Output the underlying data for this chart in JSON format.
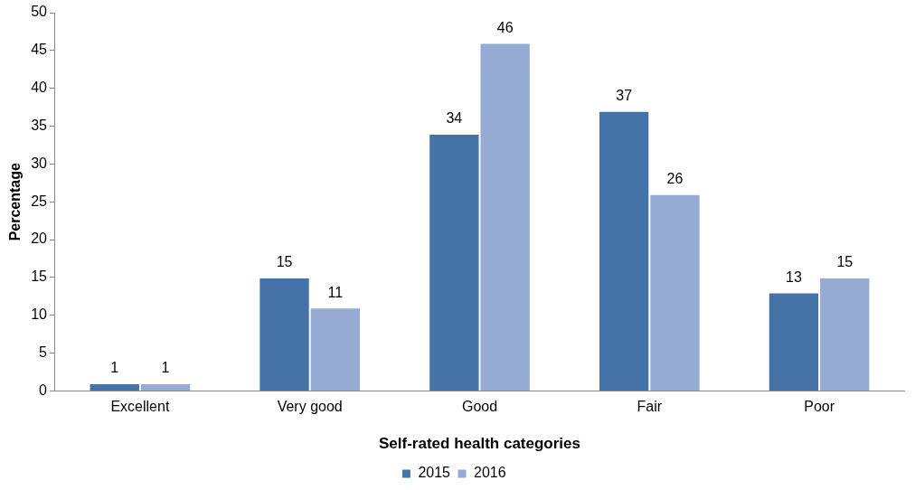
{
  "chart_data": {
    "type": "bar",
    "xlabel": "Self-rated health categories",
    "ylabel": "Percentage",
    "categories": [
      "Excellent",
      "Very good",
      "Good",
      "Fair",
      "Poor"
    ],
    "series": [
      {
        "name": "2015",
        "color": "#4573a7",
        "values": [
          1,
          15,
          34,
          37,
          13
        ]
      },
      {
        "name": "2016",
        "color": "#95abd3",
        "values": [
          1,
          11,
          46,
          26,
          15
        ]
      }
    ],
    "ylim": [
      0,
      50
    ],
    "yticks": [
      0,
      5,
      10,
      15,
      20,
      25,
      30,
      35,
      40,
      45,
      50
    ],
    "data_labels": true,
    "legend": "bottom"
  }
}
